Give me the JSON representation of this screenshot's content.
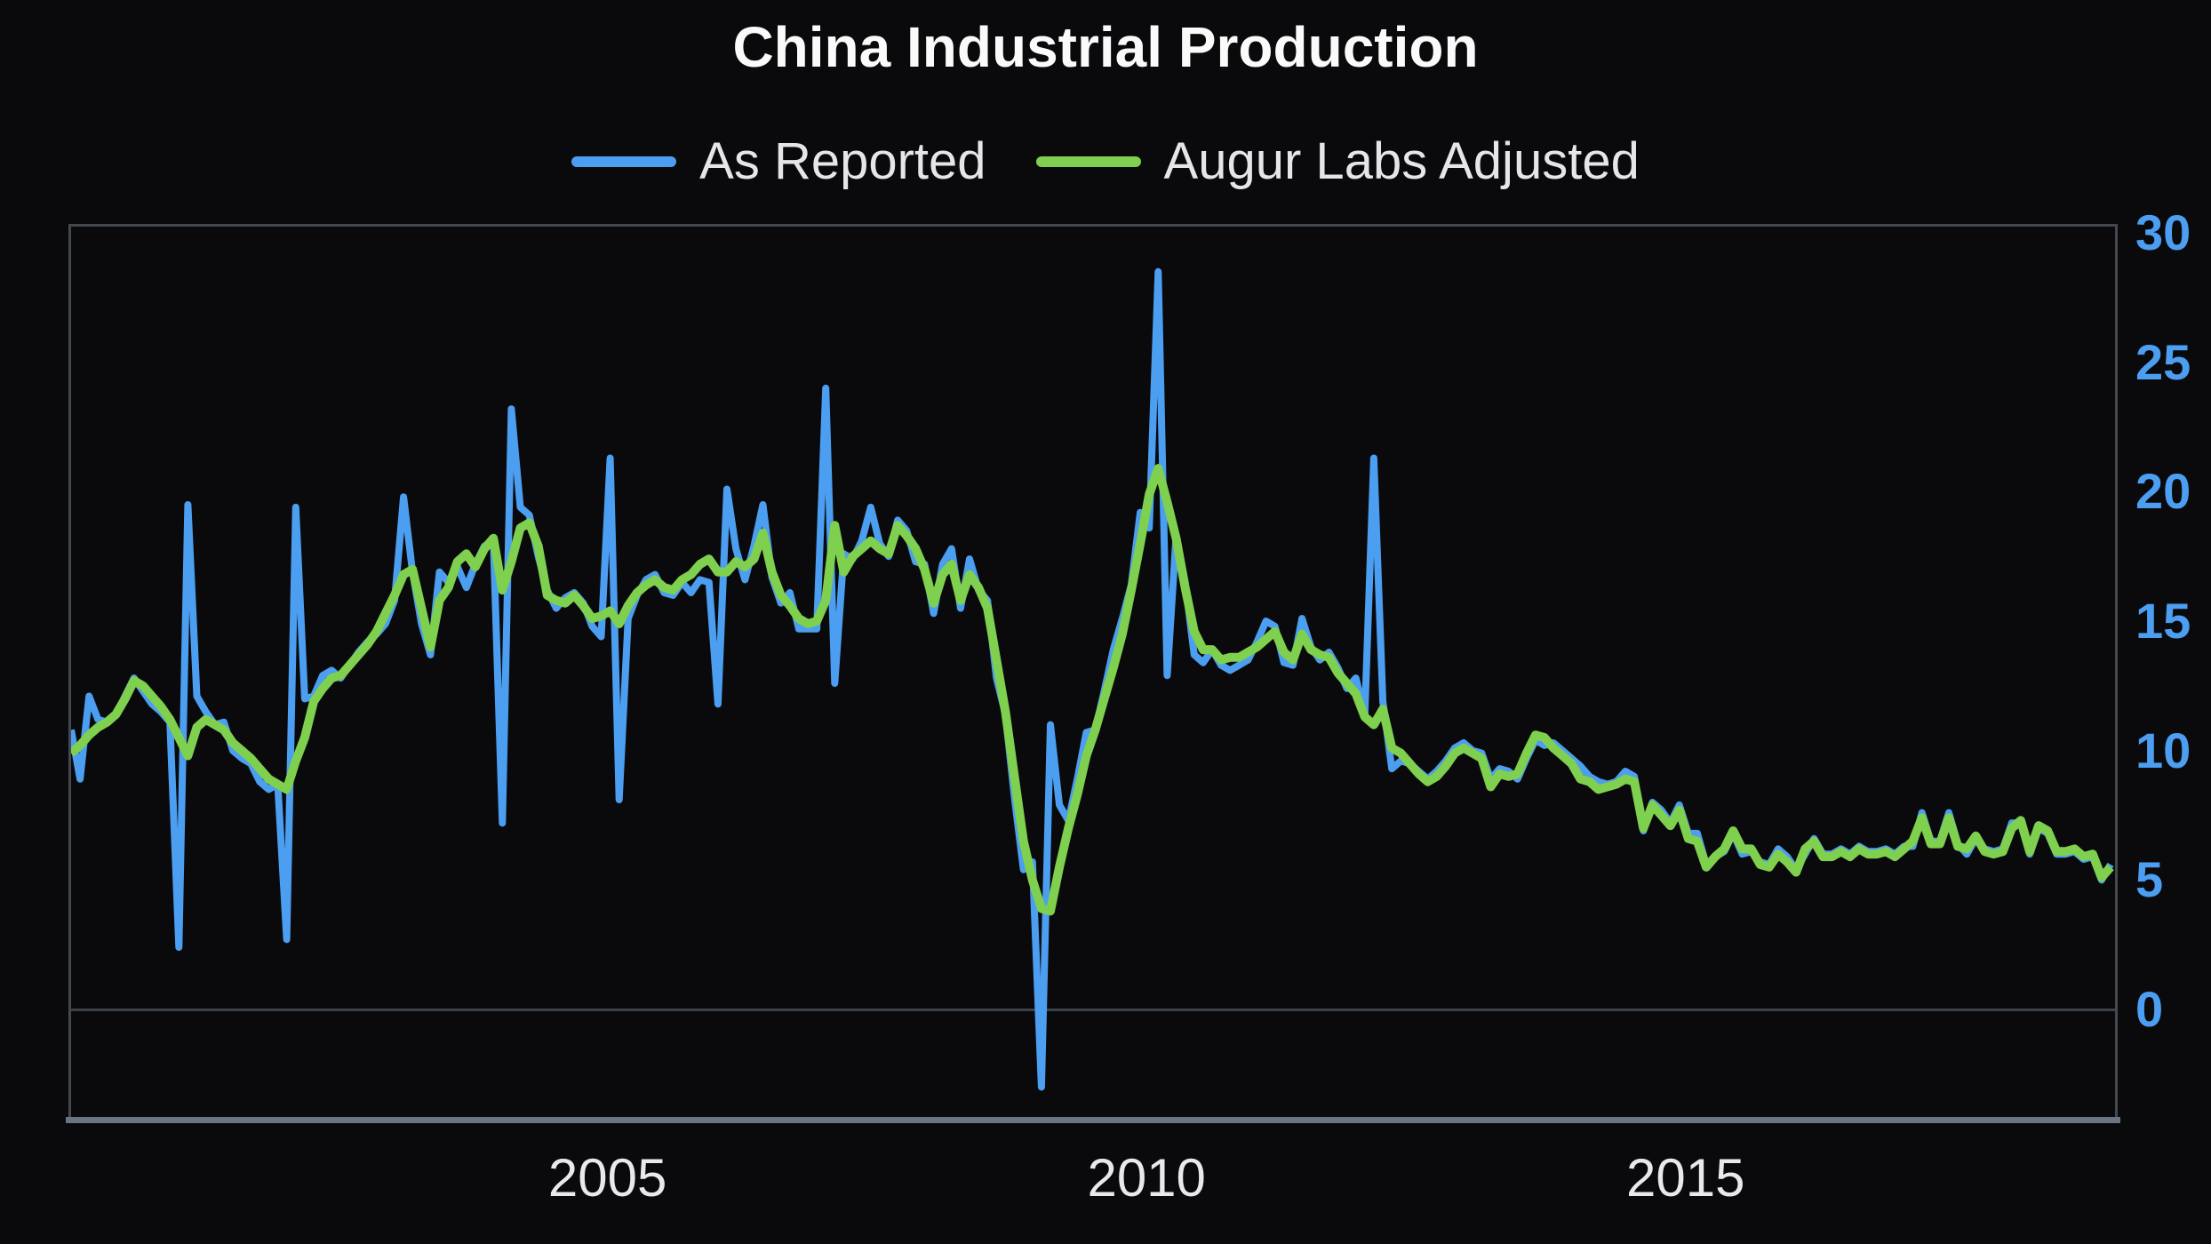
{
  "title": "China Industrial Production",
  "legend": {
    "items": [
      {
        "label": "As Reported",
        "color": "#4c9ef0"
      },
      {
        "label": "Augur Labs Adjusted",
        "color": "#7ed04e"
      }
    ]
  },
  "axes": {
    "y_ticks": [
      0,
      5,
      10,
      15,
      20,
      25,
      30
    ],
    "x_ticks": [
      2005,
      2010,
      2015
    ]
  },
  "colors": {
    "background": "#0a0a0d",
    "plot_border": "#43484f",
    "bottom_axis": "#6b7482",
    "zero_line": "#3c4147",
    "y_tick_text": "#4c9ef0",
    "x_tick_text": "#e9e9eb",
    "title_text": "#fafafa"
  },
  "chart_data": {
    "type": "line",
    "title": "China Industrial Production",
    "frequency": "monthly",
    "x_start": "2000-01",
    "x_end": "2018-12",
    "xlabel": "",
    "ylabel": "",
    "ylim": [
      -4.3,
      30.4
    ],
    "xlim": [
      2000.0,
      2019.0
    ],
    "grid": "zero-line-only",
    "legend_position": "top-center",
    "series": [
      {
        "name": "As Reported",
        "color": "#4c9ef0",
        "values": [
          10.8,
          8.9,
          12.1,
          11.2,
          11.1,
          11.4,
          12.1,
          12.8,
          12.3,
          11.8,
          11.5,
          11.1,
          2.4,
          19.5,
          12.1,
          11.5,
          11.0,
          11.1,
          10.0,
          9.7,
          9.5,
          8.8,
          8.5,
          8.7,
          2.7,
          19.4,
          12.0,
          12.1,
          12.9,
          13.1,
          12.8,
          13.3,
          13.8,
          14.2,
          14.5,
          14.9,
          15.8,
          19.8,
          16.9,
          14.9,
          13.7,
          16.9,
          16.5,
          17.1,
          16.3,
          17.2,
          17.9,
          18.1,
          7.2,
          23.2,
          19.4,
          19.1,
          17.5,
          16.2,
          15.5,
          15.9,
          16.1,
          15.7,
          14.8,
          14.4,
          21.3,
          8.1,
          15.1,
          16.0,
          16.6,
          16.8,
          16.1,
          16.0,
          16.5,
          16.1,
          16.6,
          16.5,
          11.8,
          20.1,
          17.8,
          16.6,
          17.9,
          19.5,
          16.7,
          15.7,
          16.1,
          14.7,
          14.7,
          14.7,
          24.0,
          12.6,
          17.6,
          17.4,
          18.1,
          19.4,
          18.0,
          17.5,
          18.9,
          18.5,
          17.3,
          17.2,
          15.3,
          17.2,
          17.8,
          15.5,
          17.4,
          16.2,
          15.8,
          12.8,
          11.4,
          8.2,
          5.4,
          5.7,
          -3.0,
          11.0,
          7.9,
          7.3,
          8.9,
          10.7,
          10.8,
          12.3,
          13.9,
          15.1,
          16.4,
          19.2,
          18.6,
          28.5,
          12.9,
          18.3,
          16.5,
          13.7,
          13.4,
          13.9,
          13.3,
          13.1,
          13.3,
          13.5,
          14.2,
          15.0,
          14.8,
          13.4,
          13.3,
          15.1,
          14.0,
          13.5,
          13.8,
          13.2,
          12.4,
          12.8,
          11.4,
          21.3,
          11.9,
          9.3,
          9.6,
          9.5,
          9.2,
          8.9,
          9.2,
          9.6,
          10.1,
          10.3,
          10.0,
          9.9,
          8.9,
          9.3,
          9.2,
          8.9,
          9.7,
          10.4,
          10.2,
          10.3,
          10.0,
          9.7,
          9.4,
          9.0,
          8.8,
          8.7,
          8.8,
          9.2,
          9.0,
          6.9,
          8.0,
          7.7,
          7.2,
          7.9,
          6.8,
          6.8,
          5.6,
          5.9,
          6.1,
          6.8,
          6.0,
          6.1,
          5.7,
          5.6,
          6.2,
          5.9,
          5.4,
          6.0,
          6.6,
          6.0,
          6.0,
          6.2,
          6.0,
          6.3,
          6.1,
          6.1,
          6.2,
          6.0,
          6.3,
          6.3,
          7.6,
          6.5,
          6.5,
          7.6,
          6.4,
          6.0,
          6.6,
          6.2,
          6.1,
          6.2,
          7.2,
          7.2,
          6.0,
          7.0,
          6.8,
          6.0,
          6.0,
          6.1,
          5.8,
          5.9,
          5.0,
          5.6
        ]
      },
      {
        "name": "Augur Labs Adjusted",
        "color": "#7ed04e",
        "values": [
          9.9,
          10.2,
          10.6,
          10.9,
          11.1,
          11.4,
          12.0,
          12.7,
          12.5,
          12.1,
          11.7,
          11.2,
          10.5,
          9.8,
          10.9,
          11.2,
          11.0,
          10.8,
          10.3,
          10.0,
          9.7,
          9.3,
          8.9,
          8.7,
          8.5,
          9.6,
          10.5,
          11.9,
          12.4,
          12.8,
          12.9,
          13.3,
          13.7,
          14.1,
          14.6,
          15.3,
          16.0,
          16.8,
          17.0,
          15.5,
          14.0,
          15.8,
          16.3,
          17.3,
          17.6,
          17.1,
          17.8,
          18.2,
          16.2,
          17.3,
          18.6,
          18.8,
          17.9,
          16.0,
          15.8,
          15.7,
          16.0,
          15.6,
          15.1,
          15.2,
          15.4,
          14.9,
          15.6,
          16.1,
          16.4,
          16.6,
          16.3,
          16.2,
          16.6,
          16.8,
          17.2,
          17.4,
          16.9,
          16.9,
          17.3,
          17.1,
          17.4,
          18.4,
          16.9,
          16.0,
          15.6,
          15.1,
          14.9,
          15.0,
          15.8,
          18.7,
          16.9,
          17.5,
          17.8,
          18.1,
          17.8,
          17.6,
          18.7,
          18.3,
          17.8,
          17.0,
          15.7,
          16.8,
          17.2,
          15.8,
          16.8,
          16.3,
          15.5,
          13.5,
          11.5,
          9.0,
          6.5,
          5.0,
          3.9,
          3.8,
          5.5,
          7.0,
          8.3,
          9.8,
          10.8,
          12.0,
          13.2,
          14.5,
          16.2,
          18.0,
          19.9,
          20.9,
          19.6,
          18.2,
          16.3,
          14.6,
          13.9,
          13.9,
          13.5,
          13.6,
          13.6,
          13.8,
          14.0,
          14.3,
          14.6,
          13.8,
          13.5,
          14.5,
          13.9,
          13.7,
          13.6,
          13.0,
          12.6,
          12.2,
          11.3,
          11.0,
          11.6,
          10.1,
          9.9,
          9.5,
          9.1,
          8.8,
          9.0,
          9.4,
          9.9,
          10.1,
          9.9,
          9.7,
          8.6,
          9.1,
          9.0,
          9.1,
          9.9,
          10.6,
          10.5,
          10.1,
          9.8,
          9.5,
          8.9,
          8.8,
          8.5,
          8.6,
          8.7,
          8.9,
          8.8,
          7.0,
          7.9,
          7.5,
          7.1,
          7.7,
          6.6,
          6.5,
          5.5,
          5.9,
          6.2,
          6.9,
          6.2,
          6.2,
          5.6,
          5.5,
          6.0,
          5.7,
          5.3,
          6.2,
          6.5,
          5.9,
          5.9,
          6.1,
          5.9,
          6.2,
          6.0,
          6.0,
          6.1,
          5.9,
          6.2,
          6.5,
          7.4,
          6.4,
          6.4,
          7.4,
          6.3,
          6.2,
          6.7,
          6.1,
          6.0,
          6.1,
          7.0,
          7.3,
          6.1,
          7.1,
          6.9,
          6.1,
          6.1,
          6.2,
          5.9,
          6.0,
          5.1,
          5.5
        ]
      }
    ]
  }
}
